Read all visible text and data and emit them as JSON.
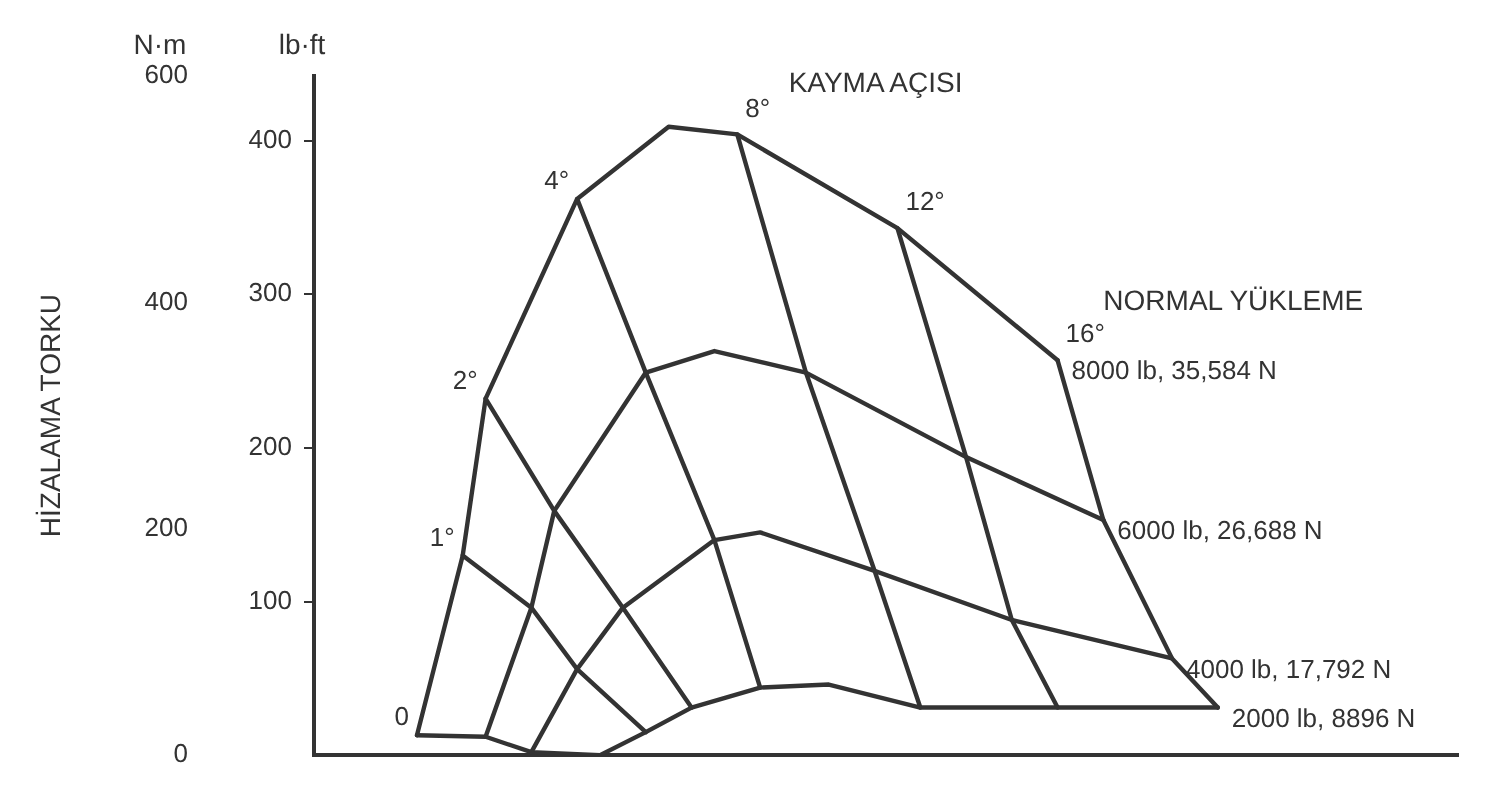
{
  "chart_data": {
    "type": "line",
    "ylabel": "lb·ft",
    "y2label": "N·m",
    "annotations": [
      "HİZALAMA TORKU",
      "KAYMA AÇISI",
      "NORMAL YÜKLEME"
    ],
    "categories": [
      null,
      null,
      null,
      null,
      null,
      null,
      null,
      null,
      null,
      null,
      null,
      null,
      null,
      null,
      null,
      null,
      null,
      null,
      null,
      null,
      null,
      null,
      null,
      null,
      null,
      null,
      null,
      null,
      null,
      null,
      null,
      null,
      null,
      null,
      null,
      null,
      null,
      null,
      null,
      null,
      null,
      null,
      null,
      null,
      null,
      null,
      null,
      null,
      null,
      null
    ],
    "ylim": [
      0,
      442
    ],
    "yticks": [
      100,
      200,
      300,
      400
    ],
    "y2lim": [
      0,
      600
    ],
    "y2ticks": [
      0,
      200,
      400,
      600
    ],
    "grid": false,
    "legend": false,
    "marker": "none",
    "line_style": "solid",
    "series": [
      {
        "name": "8000 lb, 35,584 N",
        "color": "#333333",
        "values": [
          null,
          null,
          null,
          null,
          13,
          null,
          130,
          232,
          null,
          null,
          null,
          362,
          null,
          null,
          null,
          409,
          null,
          null,
          404,
          null,
          null,
          null,
          null,
          null,
          null,
          343,
          null,
          null,
          null,
          null,
          null,
          null,
          257,
          null,
          null,
          null,
          null,
          null,
          null,
          null,
          null,
          null,
          null,
          null,
          null,
          null,
          null,
          null,
          null,
          null
        ]
      },
      {
        "name": "6000 lb, 26,688 N",
        "color": "#333333",
        "values": [
          null,
          null,
          null,
          null,
          null,
          null,
          null,
          12,
          null,
          96,
          159,
          null,
          null,
          null,
          249,
          null,
          null,
          263,
          null,
          null,
          null,
          249,
          null,
          null,
          null,
          null,
          null,
          null,
          194,
          null,
          null,
          null,
          null,
          null,
          153,
          null,
          null,
          null,
          null,
          null,
          null,
          null,
          null,
          null,
          null,
          null,
          null,
          null,
          null,
          null
        ]
      },
      {
        "name": "4000 lb, 17,792 N",
        "color": "#333333",
        "values": [
          null,
          null,
          null,
          null,
          null,
          null,
          null,
          null,
          null,
          2,
          null,
          56,
          null,
          96,
          null,
          null,
          null,
          140,
          null,
          145,
          null,
          null,
          null,
          null,
          120,
          null,
          null,
          null,
          null,
          null,
          88,
          null,
          null,
          null,
          null,
          null,
          null,
          63,
          null,
          null,
          null,
          null,
          null,
          null,
          null,
          null,
          null,
          null,
          null,
          null
        ]
      },
      {
        "name": "2000 lb, 8896 N",
        "color": "#333333",
        "values": [
          null,
          null,
          null,
          null,
          null,
          null,
          null,
          null,
          null,
          null,
          null,
          null,
          0,
          null,
          15,
          null,
          31,
          null,
          null,
          44,
          null,
          null,
          46,
          null,
          null,
          null,
          31,
          null,
          null,
          null,
          null,
          null,
          31,
          null,
          null,
          null,
          null,
          null,
          null,
          31,
          null,
          null,
          null,
          null,
          null,
          null,
          null,
          null,
          null,
          null
        ]
      },
      {
        "name": "0",
        "color": "#333333",
        "values": [
          null,
          null,
          null,
          null,
          13,
          null,
          null,
          12,
          null,
          2,
          null,
          null,
          0,
          null,
          null,
          null,
          null,
          null,
          null,
          null,
          null,
          null,
          null,
          null,
          null,
          null,
          null,
          null,
          null,
          null,
          null,
          null,
          null,
          null,
          null,
          null,
          null,
          null,
          null,
          null,
          null,
          null,
          null,
          null,
          null,
          null,
          null,
          null,
          null,
          null
        ]
      },
      {
        "name": "1°",
        "color": "#333333",
        "values": [
          null,
          null,
          null,
          null,
          null,
          null,
          130,
          null,
          null,
          96,
          null,
          56,
          null,
          null,
          15,
          null,
          null,
          null,
          null,
          null,
          null,
          null,
          null,
          null,
          null,
          null,
          null,
          null,
          null,
          null,
          null,
          null,
          null,
          null,
          null,
          null,
          null,
          null,
          null,
          null,
          null,
          null,
          null,
          null,
          null,
          null,
          null,
          null,
          null,
          null
        ]
      },
      {
        "name": "2°",
        "color": "#333333",
        "values": [
          null,
          null,
          null,
          null,
          null,
          null,
          null,
          232,
          null,
          null,
          159,
          null,
          null,
          96,
          null,
          null,
          31,
          null,
          null,
          null,
          null,
          null,
          null,
          null,
          null,
          null,
          null,
          null,
          null,
          null,
          null,
          null,
          null,
          null,
          null,
          null,
          null,
          null,
          null,
          null,
          null,
          null,
          null,
          null,
          null,
          null,
          null,
          null,
          null,
          null
        ]
      },
      {
        "name": "4°",
        "color": "#333333",
        "values": [
          null,
          null,
          null,
          null,
          null,
          null,
          null,
          null,
          null,
          null,
          null,
          362,
          null,
          null,
          249,
          null,
          null,
          140,
          null,
          44,
          null,
          null,
          null,
          null,
          null,
          null,
          null,
          null,
          null,
          null,
          null,
          null,
          null,
          null,
          null,
          null,
          null,
          null,
          null,
          null,
          null,
          null,
          null,
          null,
          null,
          null,
          null,
          null,
          null,
          null
        ]
      },
      {
        "name": "8°",
        "color": "#333333",
        "values": [
          null,
          null,
          null,
          null,
          null,
          null,
          null,
          null,
          null,
          null,
          null,
          null,
          null,
          null,
          null,
          null,
          null,
          null,
          404,
          null,
          null,
          249,
          null,
          null,
          120,
          null,
          31,
          null,
          null,
          null,
          null,
          null,
          null,
          null,
          null,
          null,
          null,
          null,
          null,
          null,
          null,
          null,
          null,
          null,
          null,
          null,
          null,
          null,
          null,
          null
        ]
      },
      {
        "name": "12°",
        "color": "#333333",
        "values": [
          null,
          null,
          null,
          null,
          null,
          null,
          null,
          null,
          null,
          null,
          null,
          null,
          null,
          null,
          null,
          null,
          null,
          null,
          null,
          null,
          null,
          null,
          null,
          null,
          null,
          343,
          null,
          null,
          194,
          null,
          88,
          null,
          31,
          null,
          null,
          null,
          null,
          null,
          null,
          null,
          null,
          null,
          null,
          null,
          null,
          null,
          null,
          null,
          null,
          null
        ]
      },
      {
        "name": "16°",
        "color": "#333333",
        "values": [
          null,
          null,
          null,
          null,
          null,
          null,
          null,
          null,
          null,
          null,
          null,
          null,
          null,
          null,
          null,
          null,
          null,
          null,
          null,
          null,
          null,
          null,
          null,
          null,
          null,
          null,
          null,
          null,
          null,
          null,
          null,
          null,
          257,
          null,
          153,
          null,
          null,
          63,
          null,
          31,
          null,
          null,
          null,
          null,
          null,
          null,
          null,
          null,
          null,
          null
        ]
      }
    ]
  }
}
